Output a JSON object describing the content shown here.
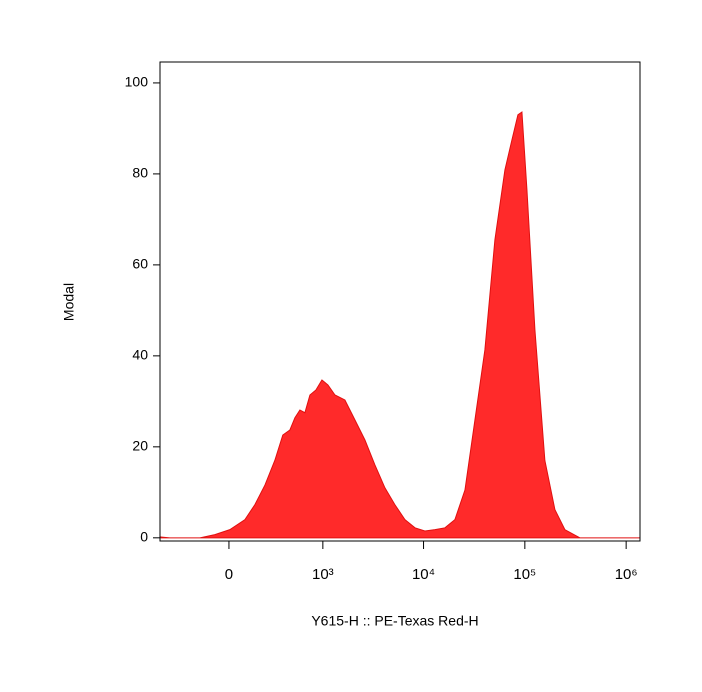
{
  "chart_data": {
    "type": "area",
    "xlabel": "Y615-H :: PE-Texas Red-H",
    "ylabel": "Modal",
    "xscale": "biexponential",
    "color": "#ff2a2a",
    "x": [
      -550,
      -428,
      -170,
      -78,
      5,
      89,
      150,
      219,
      298,
      373,
      449,
      511,
      578,
      653,
      737,
      850,
      979,
      1126,
      1325,
      1666,
      2098,
      2635,
      3312,
      4152,
      5208,
      6552,
      8232,
      10320,
      12960,
      16272,
      20400,
      25632,
      32160,
      40320,
      50640,
      63600,
      74640,
      85440,
      93600,
      104880,
      125760,
      157680,
      198000,
      248400,
      349200,
      550800,
      1370000
    ],
    "values": [
      0.2,
      0,
      0,
      0.7,
      1.8,
      4,
      7.3,
      11.6,
      17,
      22.6,
      23.7,
      26.4,
      28.1,
      27.5,
      31.4,
      32.5,
      34.7,
      33.6,
      31.4,
      30.3,
      25.9,
      21.5,
      16,
      11,
      7.3,
      4,
      2.2,
      1.5,
      1.8,
      2.2,
      4,
      10.5,
      25.9,
      41.3,
      65.5,
      80.9,
      87.5,
      93,
      93.6,
      76.5,
      45.7,
      17,
      6.2,
      1.8,
      0,
      0,
      0
    ],
    "xlim": [
      -550,
      1370000
    ],
    "xticks": [
      0,
      {
        "value": 1000,
        "label": "10³"
      },
      {
        "value": 10000,
        "label": "10⁴"
      },
      {
        "value": 100000,
        "label": "10⁵"
      },
      {
        "value": 1000000,
        "label": "10⁶"
      }
    ],
    "ylim": [
      -0.7,
      104.6
    ],
    "yticks": [
      0,
      20,
      40,
      60,
      80,
      100
    ]
  }
}
